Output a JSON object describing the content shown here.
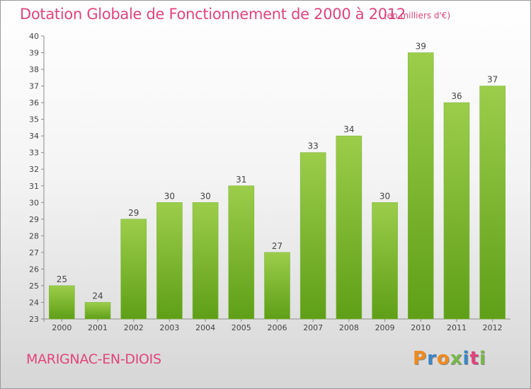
{
  "header": {
    "title": "Dotation Globale de Fonctionnement de 2000 à 2012",
    "subtitle": "(en milliers d'€)"
  },
  "footer": {
    "commune": "MARIGNAC-EN-DIOIS",
    "brand": "Proxiti"
  },
  "colors": {
    "accent": "#e0447c",
    "bar_top": "#9ccd4b",
    "bar_bottom": "#5f9f18",
    "brand_letters": [
      "#f08a1c",
      "#3a86c8",
      "#f08a1c",
      "#7ab84a",
      "#3a86c8",
      "#e0447c",
      "#7ab84a"
    ]
  },
  "chart_data": {
    "type": "bar",
    "title": "Dotation Globale de Fonctionnement de 2000 à 2012",
    "subtitle": "(en milliers d'€)",
    "categories": [
      "2000",
      "2001",
      "2002",
      "2003",
      "2004",
      "2005",
      "2006",
      "2007",
      "2008",
      "2009",
      "2010",
      "2011",
      "2012"
    ],
    "values": [
      25,
      24,
      29,
      30,
      30,
      31,
      27,
      33,
      34,
      30,
      39,
      36,
      37
    ],
    "data_labels": [
      "25",
      "24",
      "29",
      "30",
      "30",
      "31",
      "27",
      "33",
      "34",
      "30",
      "39",
      "36",
      "37"
    ],
    "ylim": [
      23,
      40
    ],
    "yticks": [
      "23",
      "24",
      "25",
      "26",
      "27",
      "28",
      "29",
      "30",
      "31",
      "32",
      "33",
      "34",
      "35",
      "36",
      "37",
      "38",
      "39",
      "40"
    ],
    "grid": false,
    "legend": "none"
  }
}
